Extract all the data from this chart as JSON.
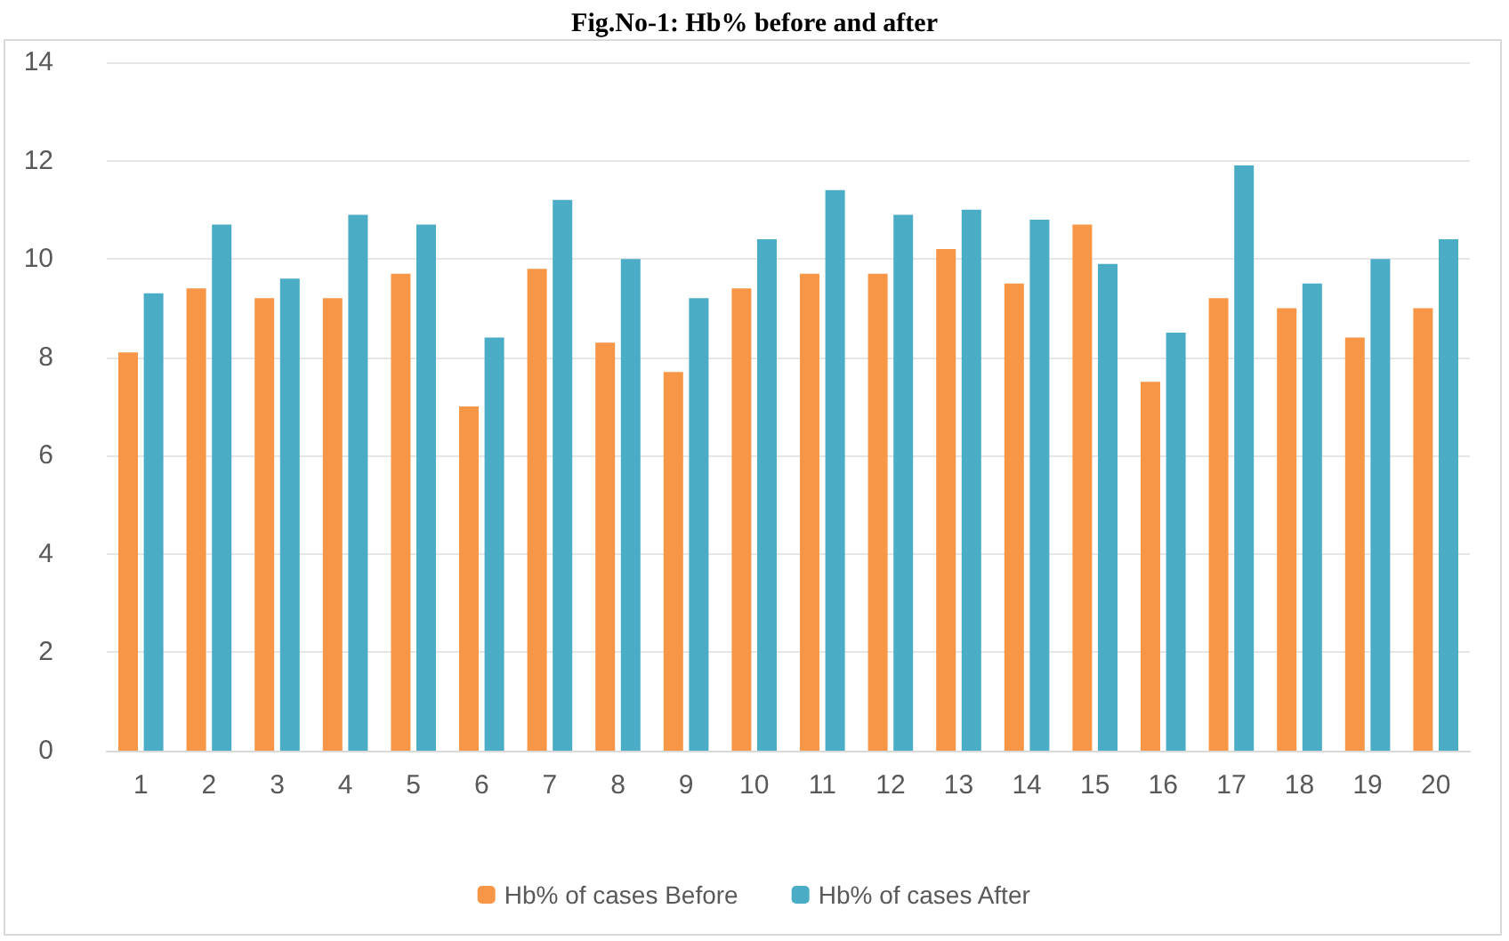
{
  "chart_data": {
    "type": "bar",
    "title": "Fig.No-1: Hb% before and after",
    "categories": [
      "1",
      "2",
      "3",
      "4",
      "5",
      "6",
      "7",
      "8",
      "9",
      "10",
      "11",
      "12",
      "13",
      "14",
      "15",
      "16",
      "17",
      "18",
      "19",
      "20"
    ],
    "series": [
      {
        "name": "Hb% of cases Before",
        "color": "#f79646",
        "values": [
          8.1,
          9.4,
          9.2,
          9.2,
          9.7,
          7.0,
          9.8,
          8.3,
          7.7,
          9.4,
          9.7,
          9.7,
          10.2,
          9.5,
          10.7,
          7.5,
          9.2,
          9.0,
          8.4,
          9.0
        ]
      },
      {
        "name": "Hb% of cases After",
        "color": "#4bacc6",
        "values": [
          9.3,
          10.7,
          9.6,
          10.9,
          10.7,
          8.4,
          11.2,
          10.0,
          9.2,
          10.4,
          11.4,
          10.9,
          11.0,
          10.8,
          9.9,
          8.5,
          11.9,
          9.5,
          10.0,
          10.4
        ]
      }
    ],
    "ylim": [
      0,
      14
    ],
    "yticks": [
      0,
      2,
      4,
      6,
      8,
      10,
      12,
      14
    ],
    "grid": "y",
    "legend": "bottom"
  }
}
